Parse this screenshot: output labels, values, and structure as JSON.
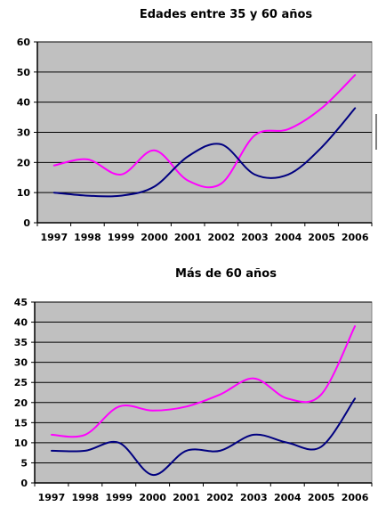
{
  "chart_data": [
    {
      "type": "line",
      "title": "Edades entre 35 y 60 años",
      "xlabel": "",
      "ylabel": "",
      "categories": [
        "1997",
        "1998",
        "1999",
        "2000",
        "2001",
        "2002",
        "2003",
        "2004",
        "2005",
        "2006"
      ],
      "ylim": [
        0,
        60
      ],
      "yticks": [
        0,
        10,
        20,
        30,
        40,
        50,
        60
      ],
      "grid": true,
      "legend": "none",
      "plot_background": "#c0c0c0",
      "series": [
        {
          "color": "#ff00ff",
          "values": [
            19,
            21,
            16,
            24,
            14,
            13,
            29,
            31,
            38,
            49
          ]
        },
        {
          "color": "#000080",
          "values": [
            10,
            9,
            9,
            12,
            22,
            26,
            16,
            16,
            25,
            38
          ]
        }
      ]
    },
    {
      "type": "line",
      "title": "Más de 60 años",
      "xlabel": "",
      "ylabel": "",
      "categories": [
        "1997",
        "1998",
        "1999",
        "2000",
        "2001",
        "2002",
        "2003",
        "2004",
        "2005",
        "2006"
      ],
      "ylim": [
        0,
        45
      ],
      "yticks": [
        0,
        5,
        10,
        15,
        20,
        25,
        30,
        35,
        40,
        45
      ],
      "grid": true,
      "legend": "none",
      "plot_background": "#c0c0c0",
      "series": [
        {
          "color": "#ff00ff",
          "values": [
            12,
            12,
            19,
            18,
            19,
            22,
            26,
            21,
            22,
            39
          ]
        },
        {
          "color": "#000080",
          "values": [
            8,
            8,
            10,
            2,
            8,
            8,
            12,
            10,
            9,
            21
          ]
        }
      ]
    }
  ]
}
